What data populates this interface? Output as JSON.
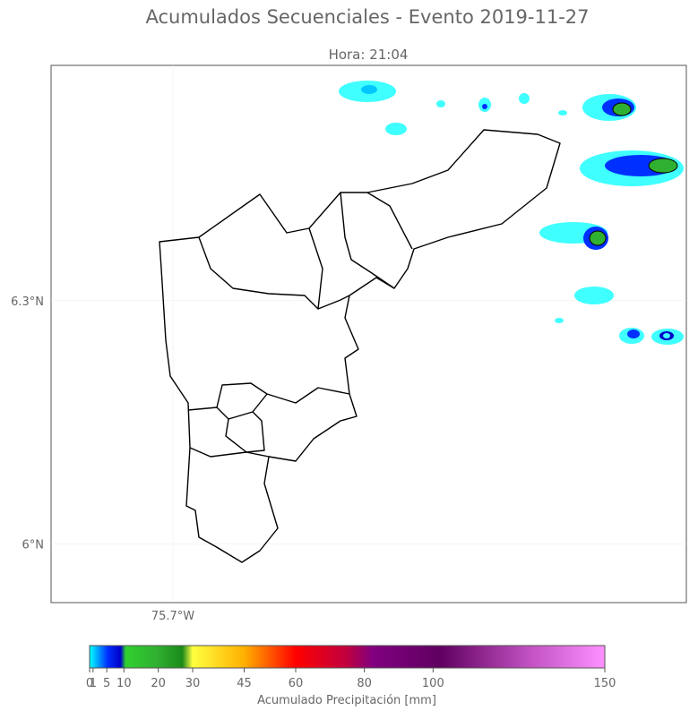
{
  "title": "Acumulados Secuenciales - Evento 2019-11-27",
  "subtitle": "Hora: 21:04",
  "map": {
    "xlim": [
      -75.85,
      -75.068
    ],
    "ylim": [
      5.928,
      6.59
    ],
    "xticks": [
      {
        "value": -75.7,
        "label": "75.7°W"
      }
    ],
    "yticks": [
      {
        "value": 6,
        "label": "6°N"
      },
      {
        "value": 6.3,
        "label": "6.3°N"
      }
    ]
  },
  "colorbar": {
    "label": "Acumulado Precipitación [mm]",
    "lim": [
      0,
      150
    ],
    "ticks": [
      0,
      1,
      5,
      10,
      20,
      30,
      45,
      60,
      80,
      100,
      150
    ]
  }
}
